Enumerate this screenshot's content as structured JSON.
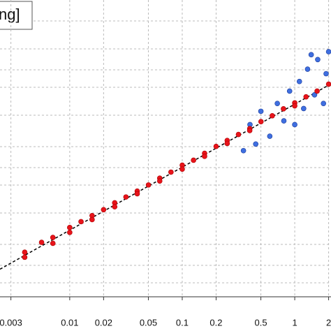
{
  "chart_data": {
    "type": "scatter",
    "title": "ng]",
    "xscale": "log",
    "yscale": "log",
    "xlim": [
      0.0024,
      2.1
    ],
    "ylim": [
      0.1,
      100
    ],
    "xticks": [
      0.003,
      0.01,
      0.02,
      0.05,
      0.1,
      0.2,
      0.5,
      1,
      2
    ],
    "grid": true,
    "series": [
      {
        "color": "#e8141b",
        "x": [
          0.00398,
          0.00398,
          0.00562,
          0.00708,
          0.00708,
          0.01,
          0.01,
          0.0126,
          0.0158,
          0.0158,
          0.02,
          0.0251,
          0.0251,
          0.0316,
          0.0398,
          0.0398,
          0.0501,
          0.0631,
          0.0631,
          0.0794,
          0.1,
          0.1,
          0.126,
          0.158,
          0.158,
          0.2,
          0.251,
          0.251,
          0.316,
          0.398,
          0.398,
          0.501,
          0.631,
          0.794,
          1,
          1,
          1.26,
          1.58,
          2.0
        ],
        "values": [
          0.282,
          0.251,
          0.355,
          0.398,
          0.347,
          0.501,
          0.447,
          0.575,
          0.661,
          0.603,
          0.759,
          0.891,
          0.813,
          1.02,
          1.17,
          1.1,
          1.35,
          1.58,
          1.48,
          1.82,
          2.14,
          1.95,
          2.4,
          2.82,
          2.63,
          3.31,
          3.8,
          3.55,
          4.37,
          5.01,
          4.79,
          5.89,
          6.76,
          7.94,
          9.12,
          8.51,
          10.5,
          12.0,
          14.1
        ]
      },
      {
        "color": "#3f6fe0",
        "x": [
          0.35,
          0.4,
          0.45,
          0.5,
          0.6,
          0.7,
          0.8,
          0.9,
          1.0,
          1.1,
          1.2,
          1.3,
          1.4,
          1.5,
          1.6,
          1.8,
          1.9,
          2.0
        ],
        "values": [
          3,
          5.5,
          3.5,
          7.5,
          4.2,
          9,
          6,
          12,
          5.5,
          15,
          8,
          20,
          28,
          11,
          25,
          9,
          18,
          30
        ]
      }
    ],
    "fit_line": {
      "color": "#000000",
      "x": [
        0.0024,
        2.1
      ],
      "values": [
        0.19,
        14.2
      ]
    }
  }
}
